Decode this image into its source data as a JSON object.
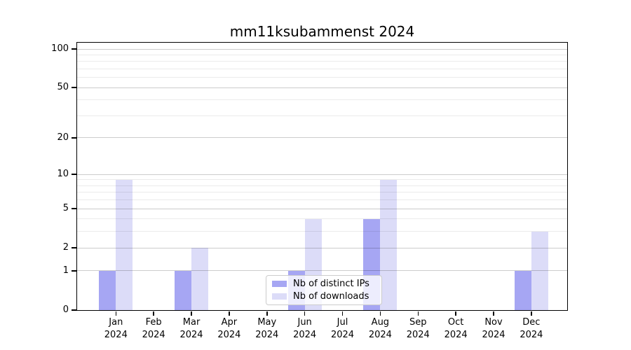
{
  "title": "mm11ksubammenst 2024",
  "chart_data": {
    "type": "bar",
    "title": "mm11ksubammenst 2024",
    "categories": [
      "Jan 2024",
      "Feb 2024",
      "Mar 2024",
      "Apr 2024",
      "May 2024",
      "Jun 2024",
      "Jul 2024",
      "Aug 2024",
      "Sep 2024",
      "Oct 2024",
      "Nov 2024",
      "Dec 2024"
    ],
    "series": [
      {
        "name": "Nb of distinct IPs",
        "color": "#a6a6f3",
        "values": [
          1,
          0,
          1,
          0,
          0,
          1,
          0,
          4,
          0,
          0,
          0,
          1
        ]
      },
      {
        "name": "Nb of downloads",
        "color": "#dcdcf8",
        "values": [
          9,
          0,
          2,
          0,
          0,
          4,
          0,
          9,
          0,
          0,
          0,
          3
        ]
      }
    ],
    "xlabel": "",
    "ylabel": "",
    "yscale": "log1p",
    "ylim": [
      0,
      100
    ],
    "yticks": [
      0,
      1,
      2,
      5,
      10,
      20,
      50,
      100
    ],
    "minor_yticks": [
      3,
      4,
      6,
      7,
      8,
      9,
      30,
      40,
      60,
      70,
      80,
      90
    ],
    "grid": true,
    "legend_position": "lower center"
  },
  "colors": {
    "major_grid": "rgba(0,0,0,0.20)",
    "minor_grid": "rgba(0,0,0,0.08)",
    "axis": "#000000",
    "background": "#ffffff"
  }
}
